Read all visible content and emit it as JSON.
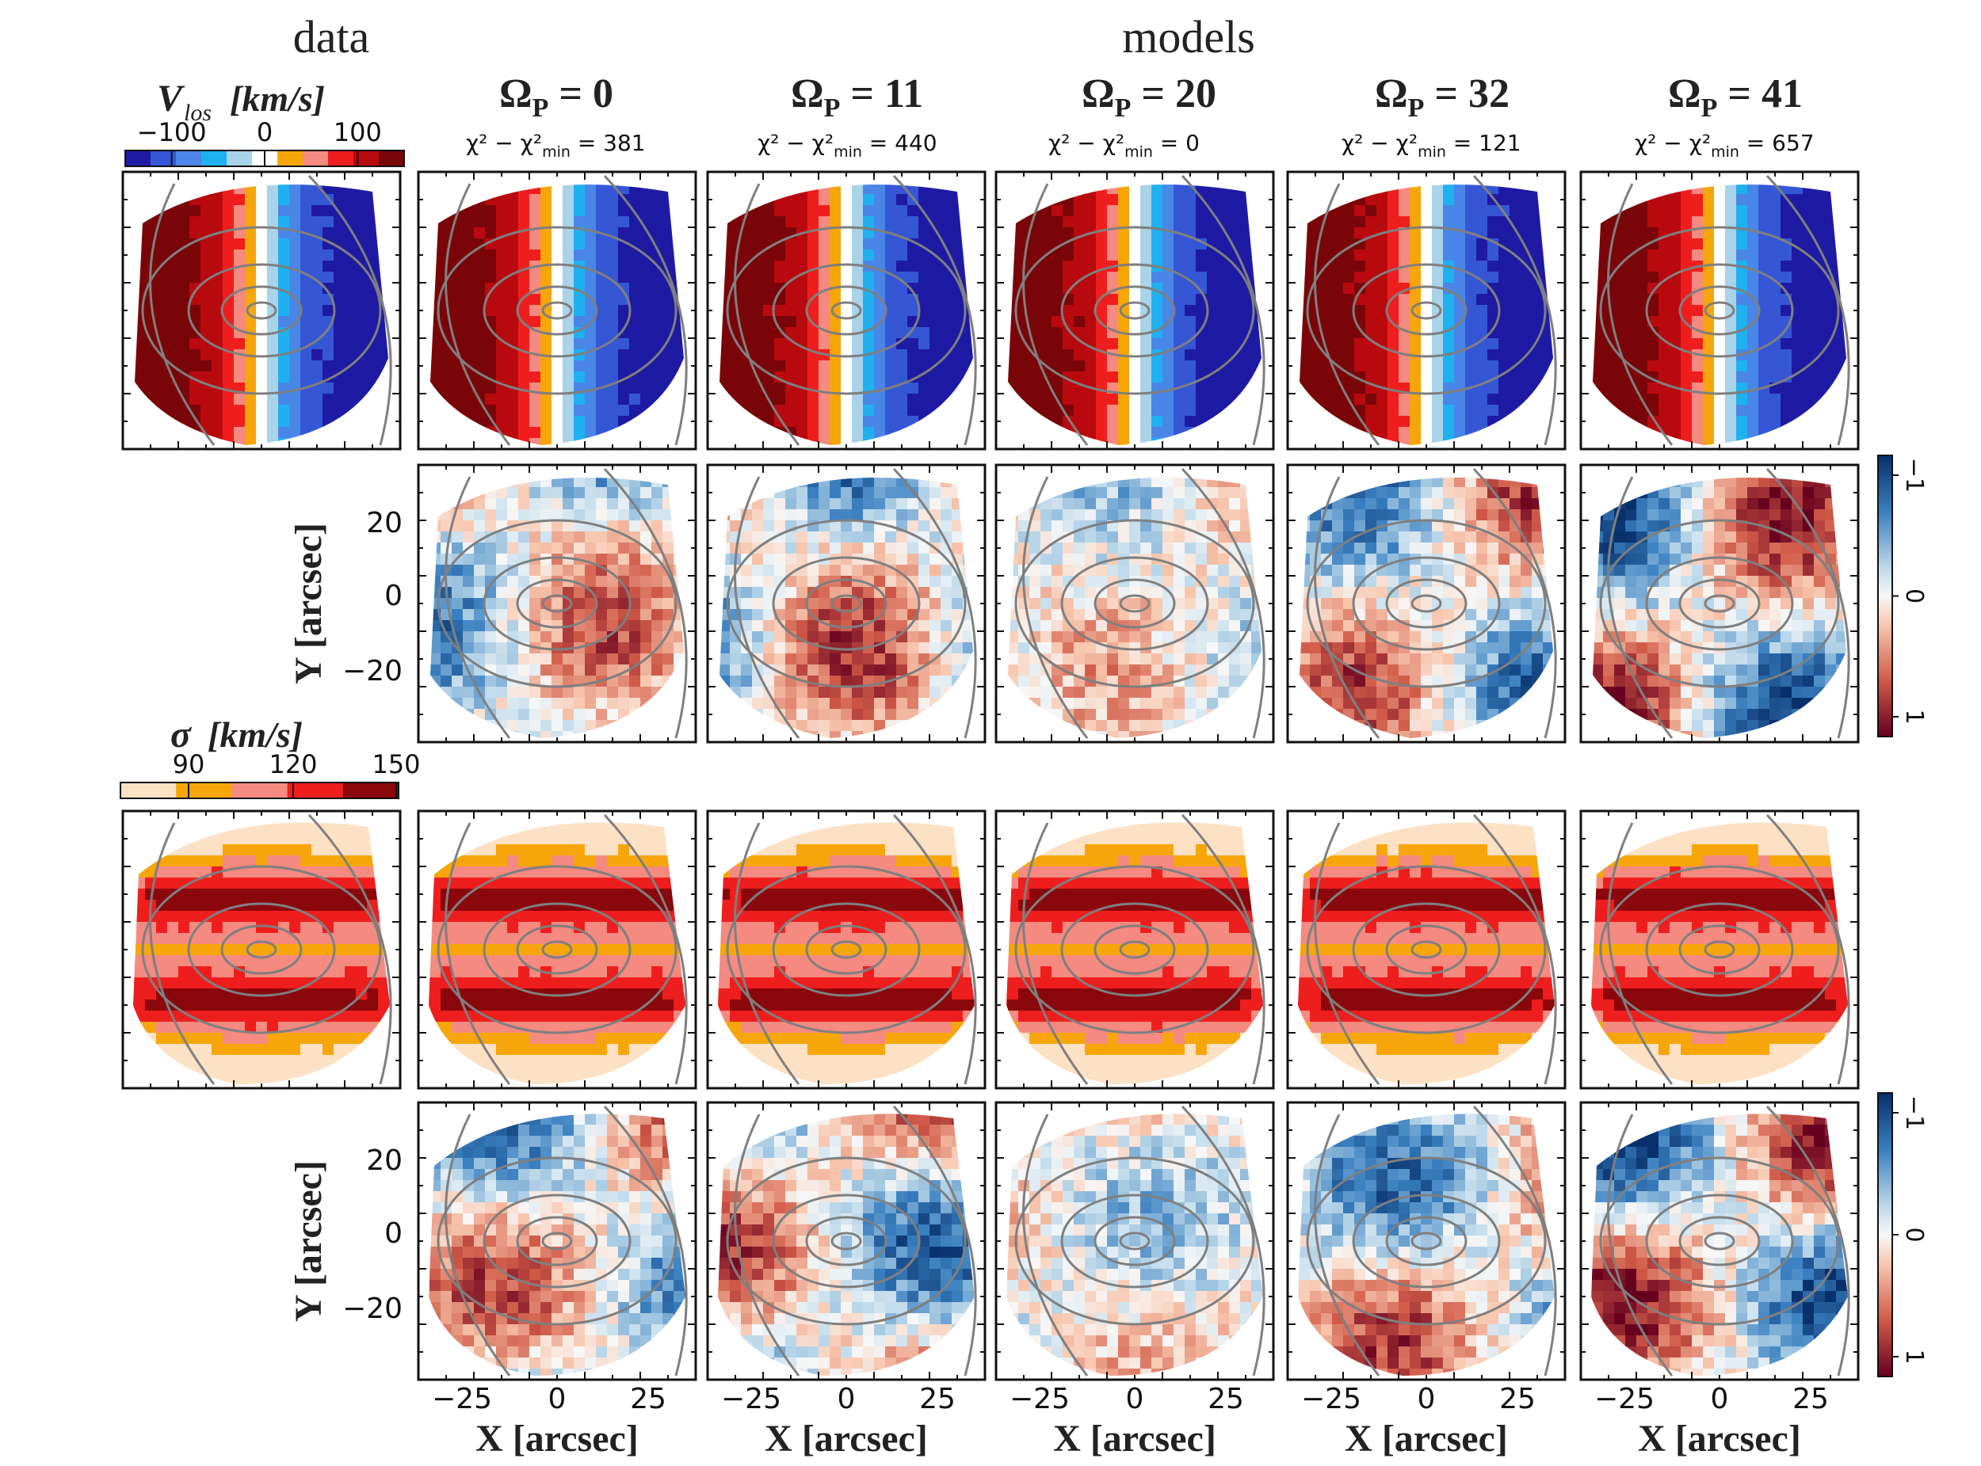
{
  "chart_data": {
    "type": "heatmap",
    "headers": {
      "data": "data",
      "models": "models"
    },
    "pattern_speed_symbol": "Ω",
    "pattern_speed_subscript": "P",
    "chi_label_prefix": "χ² − χ²",
    "chi_label_sub": "min",
    "models": [
      {
        "omega_p": 0,
        "delta_chi2": 381
      },
      {
        "omega_p": 11,
        "delta_chi2": 440
      },
      {
        "omega_p": 20,
        "delta_chi2": 0
      },
      {
        "omega_p": 32,
        "delta_chi2": 121
      },
      {
        "omega_p": 41,
        "delta_chi2": 657
      }
    ],
    "velocity_colorbar": {
      "label": "V_los [km/s]",
      "label_main": "V",
      "label_sub": "los",
      "label_units": "[km/s]",
      "ticks": [
        "−100",
        "0",
        "100"
      ],
      "tick_values": [
        -100,
        0,
        100
      ],
      "colors": [
        "#1f1aa3",
        "#3557d6",
        "#4a86e8",
        "#1fb0f0",
        "#a9d3e8",
        "#ffffff",
        "#f6a60a",
        "#f58a80",
        "#ef1e1e",
        "#b8090e",
        "#7a0508"
      ]
    },
    "dispersion_colorbar": {
      "label": "σ [km/s]",
      "label_main": "σ",
      "label_units": "[km/s]",
      "ticks": [
        "90",
        "120",
        "150"
      ],
      "tick_values": [
        90,
        120,
        150
      ],
      "colors": [
        "#fde1c4",
        "#f6a60a",
        "#f58a80",
        "#ef1e1e",
        "#8a070b"
      ]
    },
    "residual_colorbar": {
      "ticks": [
        "−1",
        "0",
        "1"
      ],
      "tick_values": [
        -1,
        0,
        1
      ]
    },
    "x_axis": {
      "label": "X [arcsec]",
      "ticks": [
        "−25",
        "0",
        "25"
      ],
      "tick_values": [
        -25,
        0,
        25
      ]
    },
    "y_axis": {
      "label": "Y [arcsec]",
      "ticks": [
        "20",
        "0",
        "−20"
      ],
      "tick_values": [
        20,
        0,
        -20
      ]
    },
    "rows": [
      "velocity maps",
      "velocity residuals",
      "dispersion maps",
      "dispersion residuals"
    ]
  }
}
